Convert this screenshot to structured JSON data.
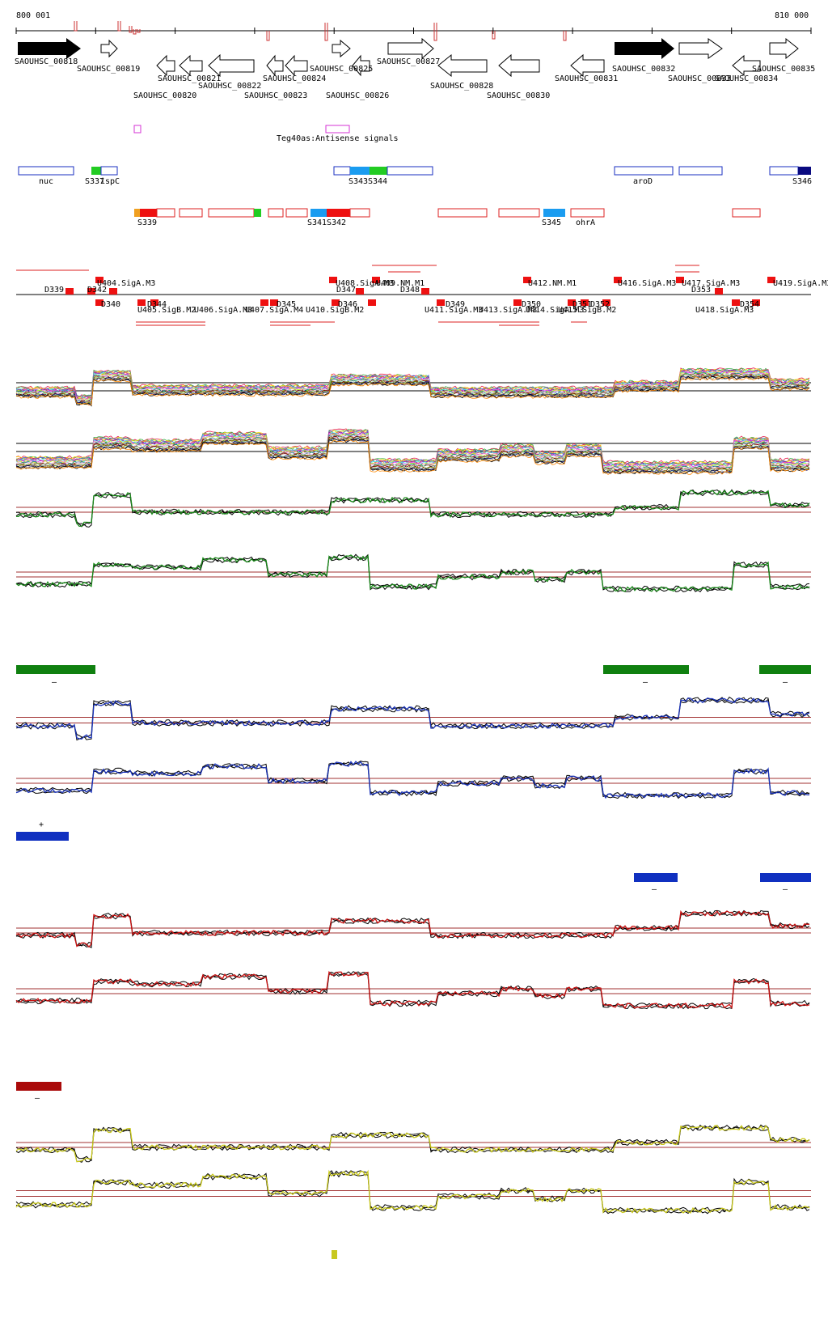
{
  "ruler": {
    "start_label": "800 001",
    "end_label": "810 000"
  },
  "genes_top": [
    "SAOUHSC_00818",
    "SAOUHSC_00825",
    "SAOUHSC_00827",
    "SAOUHSC_00832",
    "SAOUHSC_00835"
  ],
  "genes_bottom_row1": [
    "SAOUHSC_00819",
    "SAOUHSC_00821",
    "SAOUHSC_00822",
    "SAOUHSC_00824",
    "SAOUHSC_00828",
    "SAOUHSC_00831",
    "SAOUHSC_00833",
    "SAOUHSC_00834"
  ],
  "genes_bottom_row2": [
    "SAOUHSC_00820",
    "SAOUHSC_00823",
    "SAOUHSC_00826",
    "SAOUHSC_00830"
  ],
  "antisense_label": "Teg40as:Antisense signals",
  "blue_features": [
    "nuc",
    "S337",
    "ispC",
    "S343",
    "S344",
    "aroD",
    "S346"
  ],
  "red_features": [
    "S339",
    "S341",
    "S342",
    "S345",
    "ohrA"
  ],
  "promoters_top": [
    "U404.SigA.M3",
    "U408.SigA.M3",
    "U409.NM.M1",
    "U412.NM.M1",
    "U416.SigA.M3",
    "U417.SigA.M3",
    "U419.SigA.M3"
  ],
  "promoters_bottom": [
    "U405.SigB.M2",
    "U406.SigA.M3",
    "U407.SigA.M4",
    "U410.SigB.M2",
    "U411.SigA.M3",
    "U413.SigA.M3",
    "U414.SigA.M3",
    "U415.SigB.M2",
    "U418.SigA.M3"
  ],
  "terminators_top": [
    "D339",
    "D342",
    "D347",
    "D348",
    "D353"
  ],
  "terminators_bottom": [
    "D340",
    "D341",
    "D344",
    "D345",
    "D346",
    "D349",
    "D350",
    "D351",
    "D352",
    "D354"
  ],
  "strand_markers": {
    "minus": "–",
    "plus": "+"
  },
  "colors": {
    "forward_gene_fill": "#000000",
    "feature_outline_blue": "#1a2fc2",
    "feature_outline_red": "#dd2222",
    "antisense_magenta": "#d633d6",
    "green_track": "#1a8a1a",
    "blue_track": "#1a33bb",
    "red_track": "#cc1111",
    "yellow_track": "#c8c81a",
    "threshold_line": "#a03030",
    "legend_green": "#108010",
    "legend_blue": "#1030c0",
    "legend_red": "#aa0a0a",
    "legend_yellow": "#c8c820"
  }
}
